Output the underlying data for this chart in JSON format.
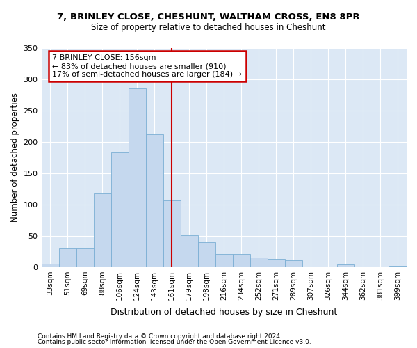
{
  "title1": "7, BRINLEY CLOSE, CHESHUNT, WALTHAM CROSS, EN8 8PR",
  "title2": "Size of property relative to detached houses in Cheshunt",
  "xlabel": "Distribution of detached houses by size in Cheshunt",
  "ylabel": "Number of detached properties",
  "categories": [
    "33sqm",
    "51sqm",
    "69sqm",
    "88sqm",
    "106sqm",
    "124sqm",
    "143sqm",
    "161sqm",
    "179sqm",
    "198sqm",
    "216sqm",
    "234sqm",
    "252sqm",
    "271sqm",
    "289sqm",
    "307sqm",
    "326sqm",
    "344sqm",
    "362sqm",
    "381sqm",
    "399sqm"
  ],
  "values": [
    5,
    30,
    30,
    118,
    183,
    285,
    212,
    107,
    51,
    40,
    21,
    21,
    16,
    13,
    11,
    0,
    0,
    4,
    0,
    0,
    2
  ],
  "bar_color": "#c5d8ee",
  "bar_edge_color": "#7bafd4",
  "property_line_index": 7,
  "property_line_color": "#cc0000",
  "annotation_line1": "7 BRINLEY CLOSE: 156sqm",
  "annotation_line2": "← 83% of detached houses are smaller (910)",
  "annotation_line3": "17% of semi-detached houses are larger (184) →",
  "annotation_box_color": "#cc0000",
  "footer1": "Contains HM Land Registry data © Crown copyright and database right 2024.",
  "footer2": "Contains public sector information licensed under the Open Government Licence v3.0.",
  "bg_color": "#dce8f5",
  "ylim": [
    0,
    350
  ],
  "yticks": [
    0,
    50,
    100,
    150,
    200,
    250,
    300,
    350
  ]
}
